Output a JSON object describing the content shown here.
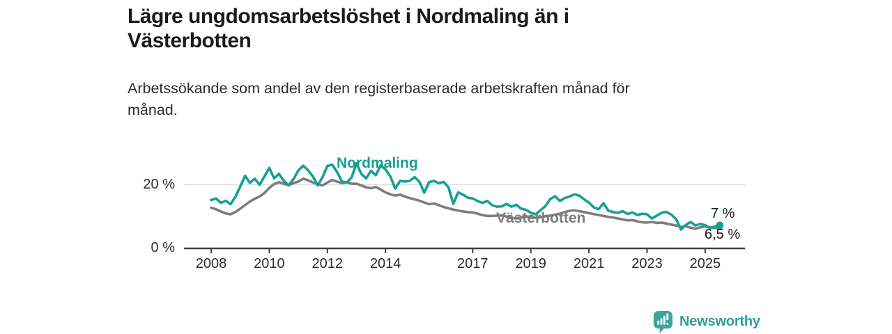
{
  "title": "Lägre ungdomsarbetslöshet i Nordmaling än i\nVästerbotten",
  "subtitle": "Arbetssökande som andel av den registerbaserade arbetskraften månad för\nmånad.",
  "brand": {
    "name": "Newsworthy",
    "icon": "newsworthy-speech-bubble-bar-chart",
    "color": "#2f9e98"
  },
  "colors": {
    "nordmaling": "#169f97",
    "vasterbotten": "#7d7d7d",
    "grid": "#dcdcdc",
    "axis": "#404040",
    "title_text": "#1a1a1a",
    "body_text": "#2d2d2d",
    "background": "#ffffff"
  },
  "chart_data": {
    "type": "line",
    "title": "Lägre ungdomsarbetslöshet i Nordmaling än i Västerbotten",
    "subtitle": "Arbetssökande som andel av den registerbaserade arbetskraften månad för månad.",
    "unit": "%",
    "grid": "single-horizontal-gridline-at-20",
    "legend_position": "inline-labels-on-lines",
    "x_axis": {
      "ticks": [
        "2008",
        "2010",
        "2012",
        "2014",
        "2017",
        "2019",
        "2021",
        "2023",
        "2025"
      ],
      "tick_years": [
        2008,
        2010,
        2012,
        2014,
        2017,
        2019,
        2021,
        2023,
        2025
      ],
      "range": [
        2007.1,
        2026.4
      ]
    },
    "y_axis": {
      "ticks": [
        {
          "value": 0,
          "label": "0 %"
        },
        {
          "value": 20,
          "label": "20 %"
        }
      ],
      "range": [
        0,
        28
      ]
    },
    "series": [
      {
        "name": "Västerbotten",
        "color": "#7d7d7d",
        "start_year": 2008.0,
        "step_years": 0.166667,
        "end_label": "6,5 %",
        "end_dot": false,
        "values": [
          12.8,
          12.3,
          11.6,
          11.0,
          10.7,
          11.4,
          12.5,
          13.6,
          14.7,
          15.6,
          16.3,
          17.4,
          19.0,
          20.2,
          20.8,
          20.3,
          19.9,
          20.5,
          21.0,
          21.9,
          21.4,
          20.7,
          20.2,
          19.8,
          20.7,
          21.5,
          21.0,
          20.5,
          20.8,
          20.3,
          20.3,
          19.8,
          19.2,
          18.9,
          19.3,
          18.5,
          17.6,
          17.0,
          16.6,
          16.9,
          16.3,
          15.8,
          15.4,
          15.0,
          14.4,
          13.9,
          14.1,
          13.6,
          13.0,
          12.6,
          12.2,
          11.9,
          11.6,
          11.4,
          11.3,
          10.9,
          10.5,
          10.2,
          10.2,
          10.3,
          10.4,
          10.0,
          9.6,
          9.4,
          9.7,
          10.0,
          9.9,
          9.6,
          9.8,
          10.1,
          10.3,
          10.6,
          10.9,
          11.4,
          11.8,
          12.0,
          11.7,
          11.4,
          11.1,
          10.8,
          10.5,
          10.2,
          9.9,
          9.7,
          9.4,
          9.1,
          8.8,
          8.9,
          8.5,
          8.2,
          8.1,
          8.3,
          8.0,
          8.1,
          7.8,
          7.5,
          7.2,
          6.8,
          7.0,
          6.5,
          6.2,
          6.6,
          6.9,
          6.6,
          6.4,
          6.5
        ]
      },
      {
        "name": "Nordmaling",
        "color": "#169f97",
        "start_year": 2008.0,
        "step_years": 0.166667,
        "end_label": "7 %",
        "end_dot": true,
        "values": [
          15.2,
          15.7,
          14.3,
          15.0,
          13.9,
          16.2,
          19.4,
          22.8,
          20.6,
          21.9,
          20.0,
          22.6,
          25.3,
          22.0,
          23.4,
          21.2,
          19.8,
          21.8,
          24.5,
          26.0,
          24.6,
          22.6,
          19.8,
          22.4,
          25.9,
          26.3,
          24.0,
          21.0,
          20.7,
          22.3,
          26.7,
          23.4,
          22.0,
          24.4,
          23.0,
          26.1,
          24.8,
          22.6,
          18.8,
          21.2,
          21.0,
          21.2,
          22.4,
          20.9,
          17.5,
          20.8,
          21.2,
          20.5,
          20.9,
          19.2,
          14.0,
          17.6,
          16.9,
          15.9,
          15.7,
          14.9,
          14.3,
          14.9,
          13.6,
          13.1,
          13.2,
          14.0,
          13.1,
          13.7,
          12.5,
          12.1,
          11.2,
          10.7,
          12.0,
          13.3,
          15.5,
          16.4,
          14.9,
          15.8,
          16.3,
          17.0,
          16.6,
          15.4,
          14.4,
          12.9,
          12.3,
          14.2,
          11.9,
          11.4,
          11.2,
          11.7,
          10.8,
          11.3,
          10.5,
          10.9,
          10.7,
          9.4,
          10.3,
          11.2,
          11.5,
          10.6,
          9.2,
          5.9,
          7.4,
          8.3,
          7.2,
          7.7,
          7.3,
          6.4,
          6.9,
          7.2
        ]
      }
    ]
  }
}
